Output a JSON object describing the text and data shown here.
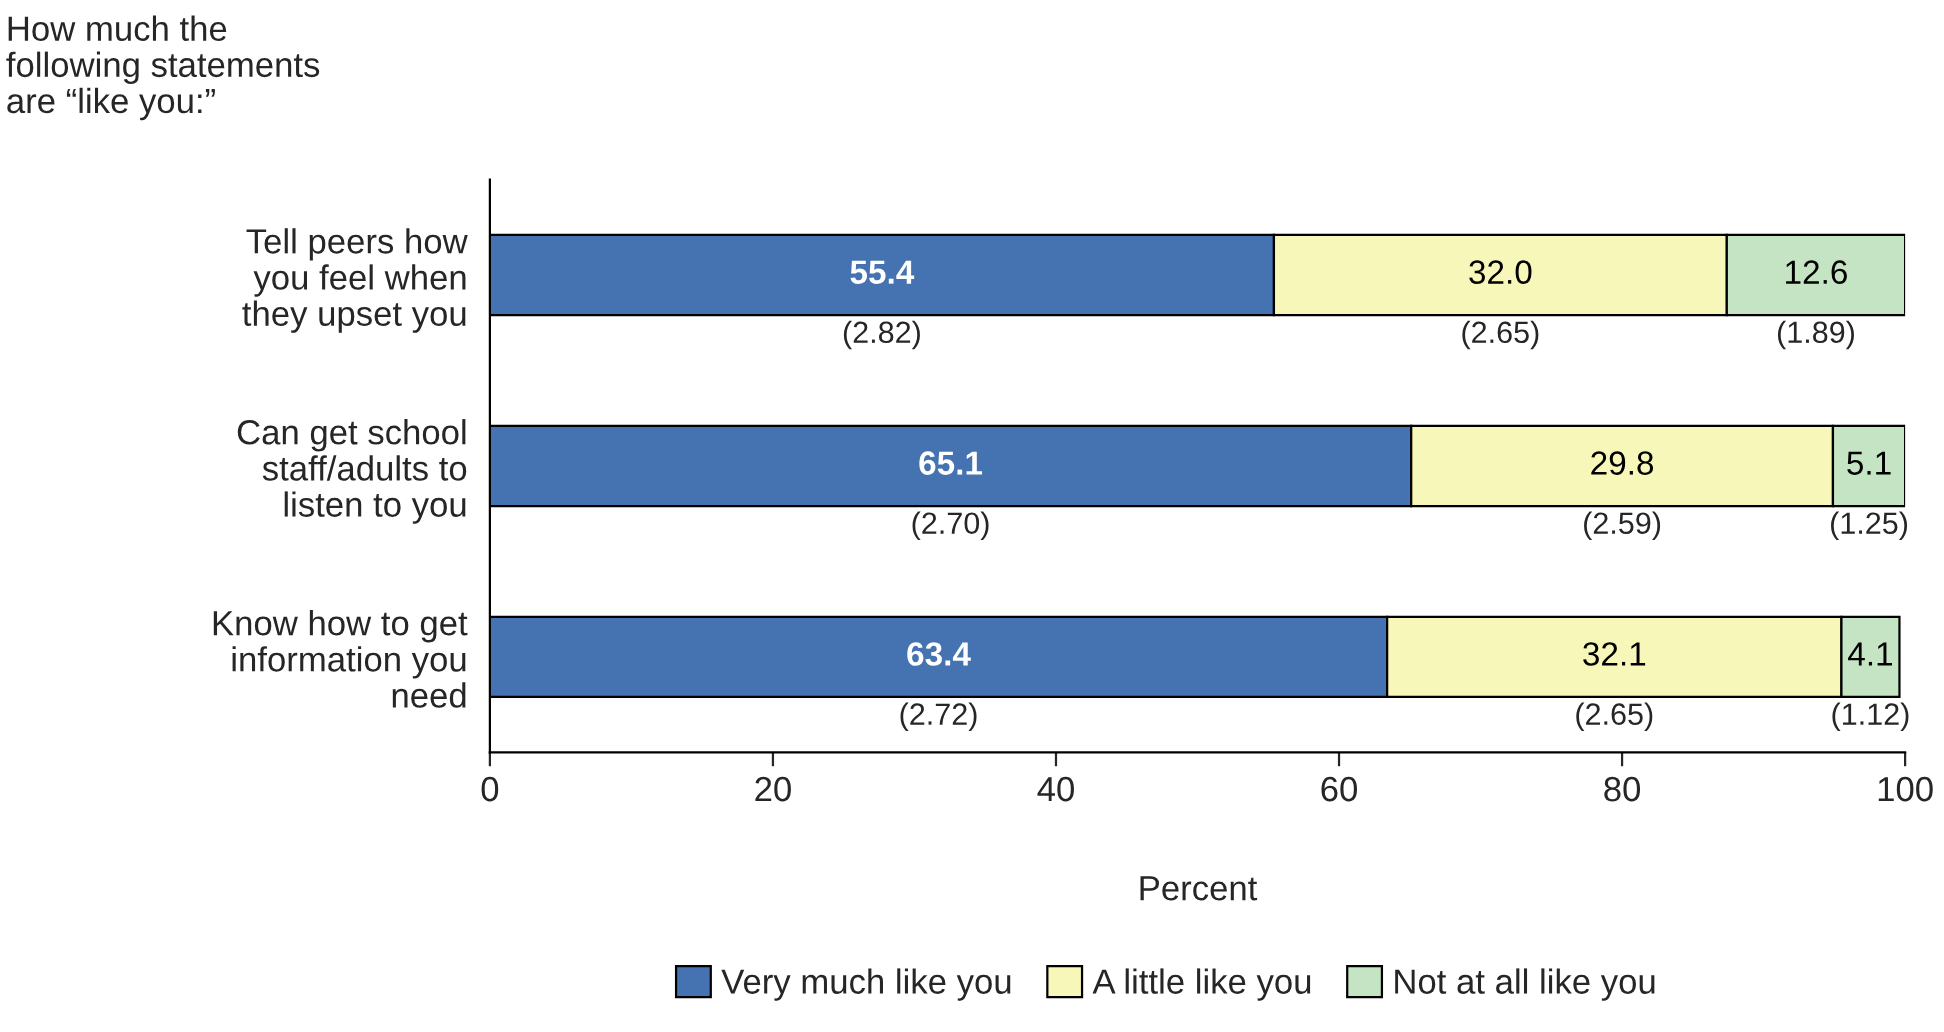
{
  "chart_data": {
    "type": "bar",
    "orientation": "horizontal",
    "stacked": true,
    "title": "How much the\nfollowing statements\nare “like you:”",
    "xlabel": "Percent",
    "categories": [
      "Tell peers how\nyou feel when\nthey upset you",
      "Can get school\nstaff/adults to\nlisten to you",
      "Know how to get\ninformation you\nneed"
    ],
    "series": [
      {
        "name": "Very much like you",
        "color": "#4573b1",
        "values": [
          55.4,
          65.1,
          63.4
        ],
        "value_labels": [
          "55.4",
          "65.1",
          "63.4"
        ]
      },
      {
        "name": "A little like you",
        "color": "#f7f7b9",
        "values": [
          32.0,
          29.8,
          32.1
        ],
        "value_labels": [
          "32.0",
          "29.8",
          "32.1"
        ]
      },
      {
        "name": "Not at all like you",
        "color": "#c4e4c4",
        "values": [
          12.6,
          5.1,
          4.1
        ],
        "value_labels": [
          "12.6",
          "5.1",
          "4.1"
        ]
      }
    ],
    "xlim": [
      0,
      100
    ],
    "xticks": [
      0,
      20,
      40,
      60,
      80,
      100
    ],
    "grid": false,
    "legend": "bottom",
    "annotations": [
      "(2.82)",
      "(2.65)",
      "(1.89)",
      "(2.70)",
      "(2.59)",
      "(1.25)",
      "(2.72)",
      "(2.65)",
      "(1.12)"
    ]
  }
}
